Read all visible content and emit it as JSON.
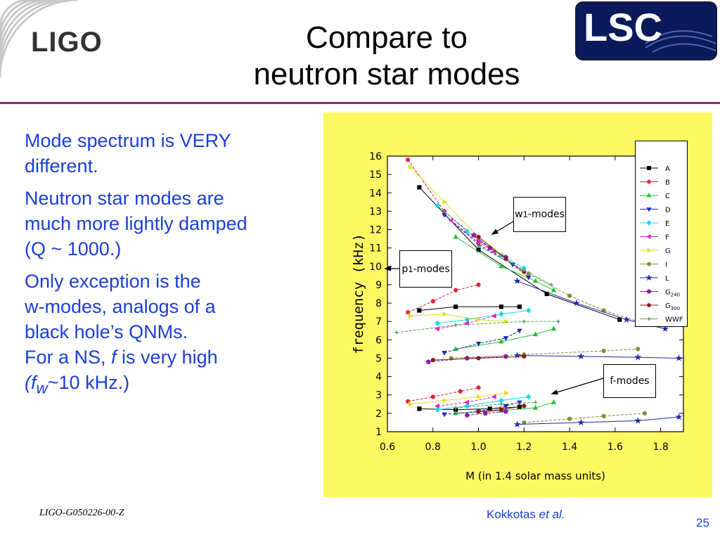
{
  "header": {
    "logo_text": "LIGO",
    "badge_text": "LSC",
    "title_line1": "Compare to",
    "title_line2": "neutron star modes"
  },
  "bullets": {
    "p1_line1": "Mode spectrum is VERY",
    "p1_line2": "different.",
    "p2_line1": "Neutron star modes are",
    "p2_line2": "much more lightly damped",
    "p2_line3": "(Q ~ 1000.)",
    "p3_line1": "Only exception is the",
    "p3_line2": "w-modes, analogs of a",
    "p3_line3": "black hole’s QNMs.",
    "p3_line4_a": "For a NS, ",
    "p3_line4_f": "f",
    "p3_line4_b": " is very high",
    "p3_line5_open": "(",
    "p3_line5_f": "f",
    "p3_line5_sub": "w",
    "p3_line5_rest": "~10 kHz.)"
  },
  "footer": {
    "doc_id": "LIGO-G050226-00-Z",
    "credit_name": "Kokkotas ",
    "credit_etal": "et al.",
    "page": "25"
  },
  "colors": {
    "accent_text": "#1a3fd6",
    "rule": "#8a2a7a",
    "figure_bg": "#fcf862"
  },
  "chart_data": {
    "type": "scatter",
    "xlabel": "M (in 1.4 solar mass units)",
    "ylabel": "frequency (kHz)",
    "xlim": [
      0.6,
      1.9
    ],
    "ylim": [
      1,
      16
    ],
    "xticks": [
      "0.6",
      "0.8",
      "1.0",
      "1.2",
      "1.4",
      "1.6",
      "1.8"
    ],
    "yticks": [
      "1",
      "2",
      "3",
      "4",
      "5",
      "6",
      "7",
      "8",
      "9",
      "10",
      "11",
      "12",
      "13",
      "14",
      "15",
      "16"
    ],
    "legend_position": "top-right",
    "annotations": [
      {
        "main": "w",
        "sub": "1",
        "rest": "-modes"
      },
      {
        "main": "p",
        "sub": "1",
        "rest": "-modes"
      },
      {
        "main": "f-modes",
        "sub": "",
        "rest": ""
      }
    ],
    "series": [
      {
        "name": "A",
        "color": "#000000",
        "marker": "square",
        "w": [
          [
            0.74,
            14.3
          ],
          [
            1.0,
            10.9
          ],
          [
            1.3,
            8.5
          ],
          [
            1.62,
            7.1
          ]
        ],
        "p": [
          [
            0.74,
            7.6
          ],
          [
            0.9,
            7.8
          ],
          [
            1.1,
            7.8
          ],
          [
            1.18,
            7.8
          ]
        ],
        "f": [
          [
            0.74,
            2.25
          ],
          [
            0.9,
            2.2
          ],
          [
            1.05,
            2.25
          ],
          [
            1.18,
            2.35
          ]
        ]
      },
      {
        "name": "B",
        "color": "#e8203a",
        "marker": "circle",
        "w": [
          [
            0.69,
            15.8
          ],
          [
            0.85,
            13.0
          ],
          [
            1.0,
            11.4
          ],
          [
            1.1,
            10.6
          ]
        ],
        "p": [
          [
            0.69,
            7.5
          ],
          [
            0.8,
            8.1
          ],
          [
            0.9,
            8.7
          ],
          [
            1.0,
            9.0
          ]
        ],
        "f": [
          [
            0.69,
            2.65
          ],
          [
            0.8,
            2.9
          ],
          [
            0.92,
            3.2
          ],
          [
            1.0,
            3.4
          ]
        ]
      },
      {
        "name": "C",
        "color": "#22c032",
        "marker": "triangle-up",
        "w": [
          [
            0.9,
            11.6
          ],
          [
            1.1,
            10.0
          ],
          [
            1.25,
            9.2
          ],
          [
            1.33,
            8.7
          ]
        ],
        "p": [
          [
            0.9,
            5.5
          ],
          [
            1.1,
            5.9
          ],
          [
            1.25,
            6.3
          ],
          [
            1.33,
            6.6
          ]
        ],
        "f": [
          [
            0.9,
            2.0
          ],
          [
            1.1,
            2.15
          ],
          [
            1.25,
            2.3
          ],
          [
            1.33,
            2.6
          ]
        ]
      },
      {
        "name": "D",
        "color": "#1a2ab8",
        "marker": "triangle-down",
        "w": [
          [
            0.85,
            12.8
          ],
          [
            1.0,
            11.2
          ],
          [
            1.15,
            10.1
          ],
          [
            1.22,
            9.4
          ]
        ],
        "p": [
          [
            0.85,
            5.3
          ],
          [
            1.0,
            5.8
          ],
          [
            1.12,
            6.1
          ],
          [
            1.18,
            6.5
          ]
        ],
        "f": [
          [
            0.85,
            1.95
          ],
          [
            1.0,
            2.1
          ],
          [
            1.12,
            2.4
          ],
          [
            1.18,
            2.6
          ]
        ]
      },
      {
        "name": "E",
        "color": "#14d8e8",
        "marker": "diamond",
        "w": [
          [
            0.82,
            13.3
          ],
          [
            0.95,
            11.9
          ],
          [
            1.1,
            10.6
          ],
          [
            1.2,
            9.9
          ]
        ],
        "p": [
          [
            0.82,
            6.9
          ],
          [
            0.95,
            7.1
          ],
          [
            1.1,
            7.4
          ],
          [
            1.22,
            7.6
          ]
        ],
        "f": [
          [
            0.82,
            2.2
          ],
          [
            0.95,
            2.4
          ],
          [
            1.1,
            2.7
          ],
          [
            1.22,
            2.9
          ]
        ]
      },
      {
        "name": "F",
        "color": "#e020d0",
        "marker": "triangle-left",
        "w": [
          [
            0.88,
            12.5
          ],
          [
            1.0,
            11.3
          ],
          [
            1.07,
            10.8
          ]
        ],
        "p": [
          [
            0.82,
            6.6
          ],
          [
            0.95,
            6.9
          ],
          [
            1.07,
            7.3
          ]
        ],
        "f": [
          [
            0.82,
            2.4
          ],
          [
            0.95,
            2.6
          ],
          [
            1.07,
            2.9
          ]
        ]
      },
      {
        "name": "G",
        "color": "#e0e020",
        "marker": "triangle-right",
        "w": [
          [
            0.7,
            15.4
          ],
          [
            0.85,
            13.5
          ],
          [
            1.0,
            11.6
          ],
          [
            1.12,
            10.5
          ]
        ],
        "p": [
          [
            0.7,
            7.3
          ],
          [
            0.85,
            7.4
          ],
          [
            1.0,
            7.1
          ],
          [
            1.12,
            7.0
          ]
        ],
        "f": [
          [
            0.7,
            2.5
          ],
          [
            0.85,
            2.7
          ],
          [
            1.0,
            2.9
          ],
          [
            1.12,
            3.1
          ]
        ]
      },
      {
        "name": "I",
        "color": "#8a8a3a",
        "marker": "circle",
        "w": [
          [
            1.22,
            9.6
          ],
          [
            1.4,
            8.4
          ],
          [
            1.55,
            7.6
          ],
          [
            1.7,
            7.0
          ]
        ],
        "p": [
          [
            0.88,
            5.0
          ],
          [
            1.2,
            5.2
          ],
          [
            1.55,
            5.4
          ],
          [
            1.7,
            5.5
          ]
        ],
        "f": [
          [
            1.2,
            1.5
          ],
          [
            1.4,
            1.7
          ],
          [
            1.55,
            1.85
          ],
          [
            1.73,
            2.0
          ]
        ]
      },
      {
        "name": "L",
        "color": "#1a2aa8",
        "marker": "star",
        "w": [
          [
            1.17,
            9.2
          ],
          [
            1.43,
            8.0
          ],
          [
            1.65,
            7.1
          ],
          [
            1.82,
            6.6
          ]
        ],
        "p": [
          [
            1.17,
            5.15
          ],
          [
            1.45,
            5.1
          ],
          [
            1.7,
            5.05
          ],
          [
            1.88,
            5.0
          ]
        ],
        "f": [
          [
            1.17,
            1.4
          ],
          [
            1.45,
            1.5
          ],
          [
            1.7,
            1.6
          ],
          [
            1.88,
            1.8
          ]
        ]
      },
      {
        "name": "G240",
        "color": "#8a1aa0",
        "marker": "pentagon",
        "w": [
          [
            0.98,
            11.7
          ],
          [
            1.05,
            11.0
          ],
          [
            1.12,
            10.5
          ]
        ],
        "p": [
          [
            0.78,
            4.8
          ],
          [
            0.95,
            5.0
          ],
          [
            1.12,
            5.1
          ]
        ],
        "f": [
          [
            0.95,
            1.9
          ],
          [
            1.03,
            2.0
          ],
          [
            1.12,
            2.1
          ]
        ]
      },
      {
        "name": "G300",
        "color": "#8a1a1a",
        "marker": "circle",
        "w": [
          [
            1.0,
            11.6
          ],
          [
            1.12,
            10.4
          ],
          [
            1.2,
            9.7
          ]
        ],
        "p": [
          [
            0.8,
            4.9
          ],
          [
            1.0,
            5.0
          ],
          [
            1.2,
            5.1
          ]
        ],
        "f": [
          [
            1.0,
            2.1
          ],
          [
            1.1,
            2.2
          ],
          [
            1.2,
            2.4
          ]
        ]
      },
      {
        "name": "WWF",
        "color": "#5aa05a",
        "marker": "plus",
        "w": [
          [
            1.0,
            11.1
          ],
          [
            1.2,
            9.8
          ],
          [
            1.32,
            9.0
          ]
        ],
        "p": [
          [
            0.64,
            6.4
          ],
          [
            0.9,
            6.8
          ],
          [
            1.2,
            7.0
          ],
          [
            1.35,
            7.0
          ]
        ],
        "f": [
          [
            0.9,
            2.3
          ],
          [
            1.1,
            2.5
          ],
          [
            1.25,
            2.6
          ]
        ]
      }
    ]
  }
}
